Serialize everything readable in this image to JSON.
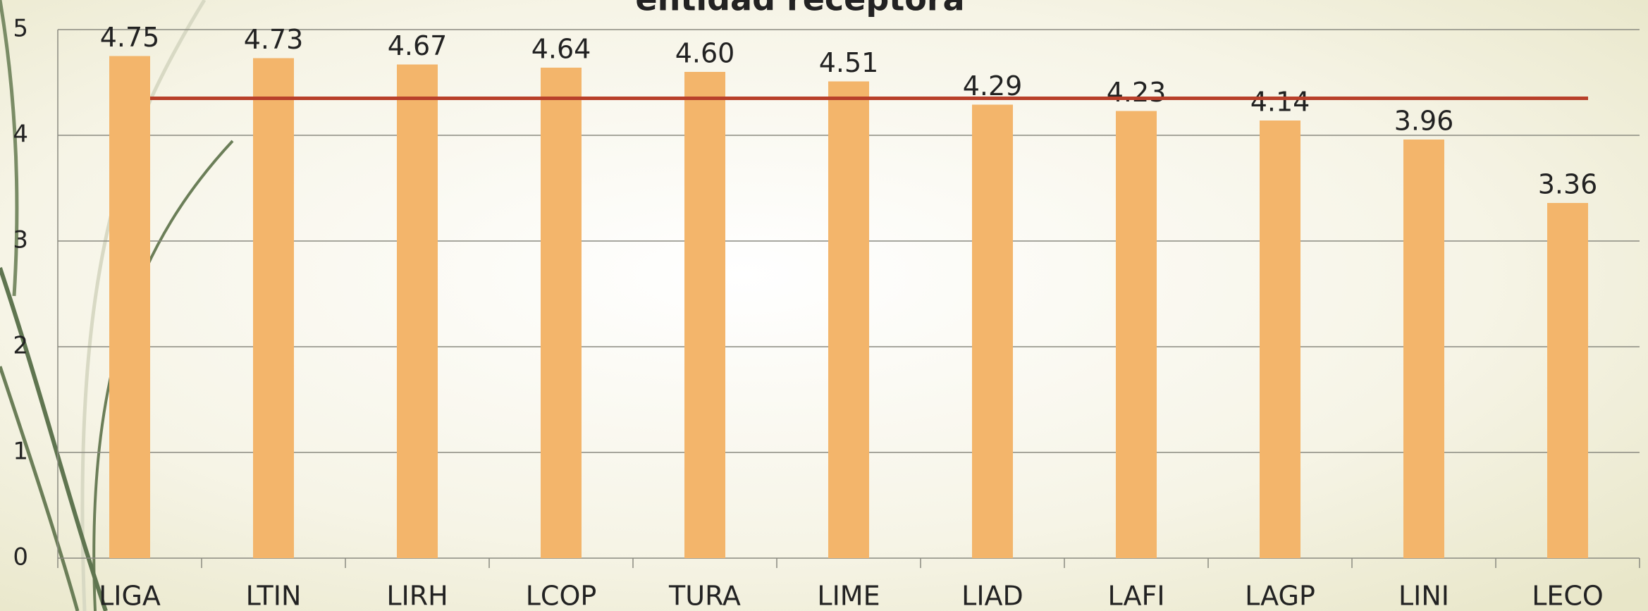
{
  "chart_data": {
    "type": "bar",
    "title": "entidad receptora",
    "categories": [
      "LIGA",
      "LTIN",
      "LIRH",
      "LCOP",
      "TURA",
      "LIME",
      "LIAD",
      "LAFI",
      "LAGP",
      "LINI",
      "LECO"
    ],
    "values": [
      4.75,
      4.73,
      4.67,
      4.64,
      4.6,
      4.51,
      4.29,
      4.23,
      4.14,
      3.96,
      3.36
    ],
    "value_labels": [
      "4.75",
      "4.73",
      "4.67",
      "4.64",
      "4.60",
      "4.51",
      "4.29",
      "4.23",
      "4.14",
      "3.96",
      "3.36"
    ],
    "color": "#f3b56b",
    "reference_line": {
      "value": 4.35,
      "color": "#b8402a"
    },
    "ylim": [
      0,
      5
    ],
    "yticks": [
      0,
      1,
      2,
      3,
      4,
      5
    ],
    "grid": true
  }
}
